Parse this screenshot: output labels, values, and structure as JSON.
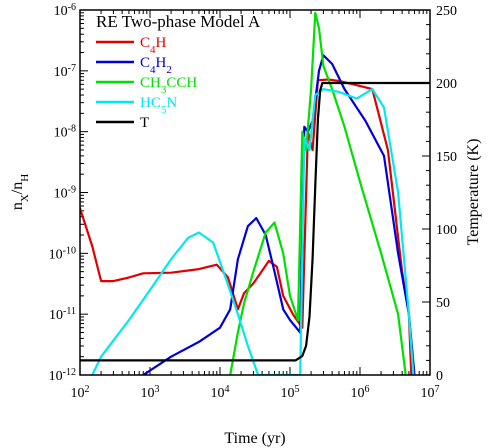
{
  "chart_data": {
    "type": "line",
    "title": "RE Two-phase Model A",
    "xlabel": "Time (yr)",
    "ylabel": "n_X/n_H",
    "ylabel_right": "Temperature (K)",
    "x_scale": "log",
    "y_scale": "log",
    "xlim": [
      100,
      10000000
    ],
    "ylim": [
      1e-12,
      1e-06
    ],
    "y2lim": [
      0,
      250
    ],
    "x_ticks": [
      {
        "v": 100,
        "base": "10",
        "exp": "2"
      },
      {
        "v": 1000,
        "base": "10",
        "exp": "3"
      },
      {
        "v": 10000,
        "base": "10",
        "exp": "4"
      },
      {
        "v": 100000,
        "base": "10",
        "exp": "5"
      },
      {
        "v": 1000000,
        "base": "10",
        "exp": "6"
      },
      {
        "v": 10000000,
        "base": "10",
        "exp": "7"
      }
    ],
    "y_ticks": [
      {
        "v": 1e-12,
        "base": "10",
        "exp": "-12"
      },
      {
        "v": 1e-11,
        "base": "10",
        "exp": "-11"
      },
      {
        "v": 1e-10,
        "base": "10",
        "exp": "-10"
      },
      {
        "v": 1e-09,
        "base": "10",
        "exp": "-9"
      },
      {
        "v": 1e-08,
        "base": "10",
        "exp": "-8"
      },
      {
        "v": 1e-07,
        "base": "10",
        "exp": "-7"
      },
      {
        "v": 1e-06,
        "base": "10",
        "exp": "-6"
      }
    ],
    "y2_ticks": [
      "0",
      "50",
      "100",
      "150",
      "200",
      "250"
    ],
    "legend_position": "top-left",
    "series": [
      {
        "name": "C4H",
        "label_parts": [
          {
            "t": "C"
          },
          {
            "t": "4",
            "sub": true
          },
          {
            "t": "H"
          }
        ],
        "color": "#e00000",
        "axis": "left",
        "points": [
          [
            100,
            5.5e-10
          ],
          [
            150,
            1.3e-10
          ],
          [
            200,
            3.5e-11
          ],
          [
            300,
            3.5e-11
          ],
          [
            500,
            4e-11
          ],
          [
            800,
            4.7e-11
          ],
          [
            2000,
            4.8e-11
          ],
          [
            5000,
            5.5e-11
          ],
          [
            9000,
            6.5e-11
          ],
          [
            13000,
            4e-11
          ],
          [
            18000,
            1.2e-11
          ],
          [
            22000,
            2.2e-11
          ],
          [
            30000,
            3.2e-11
          ],
          [
            50000,
            7.5e-11
          ],
          [
            65000,
            6e-11
          ],
          [
            80000,
            2e-11
          ],
          [
            110000,
            1e-11
          ],
          [
            150000,
            6e-12
          ],
          [
            180000,
            1e-08
          ],
          [
            210000,
            5e-09
          ],
          [
            250000,
            7e-08
          ],
          [
            350000,
            7.2e-08
          ],
          [
            500000,
            6.8e-08
          ],
          [
            800000,
            6e-08
          ],
          [
            1500000,
            5e-08
          ],
          [
            2500000,
            5e-09
          ],
          [
            4000000,
            5e-11
          ],
          [
            5000000,
            1e-11
          ],
          [
            5400000,
            1e-12
          ]
        ]
      },
      {
        "name": "C4H2",
        "label_parts": [
          {
            "t": "C"
          },
          {
            "t": "4",
            "sub": true
          },
          {
            "t": "H"
          },
          {
            "t": "2",
            "sub": true
          }
        ],
        "color": "#0000d8",
        "axis": "left",
        "points": [
          [
            800,
            1e-12
          ],
          [
            2000,
            2e-12
          ],
          [
            5000,
            3.5e-12
          ],
          [
            10000,
            6e-12
          ],
          [
            14000,
            1.2e-11
          ],
          [
            18000,
            8e-11
          ],
          [
            25000,
            2.8e-10
          ],
          [
            33000,
            3.8e-10
          ],
          [
            45000,
            2e-10
          ],
          [
            60000,
            5e-11
          ],
          [
            80000,
            1.2e-11
          ],
          [
            100000,
            8e-12
          ],
          [
            140000,
            5e-12
          ],
          [
            160000,
            1.2e-08
          ],
          [
            180000,
            1e-08
          ],
          [
            210000,
            1.5e-08
          ],
          [
            260000,
            1e-07
          ],
          [
            300000,
            1.8e-07
          ],
          [
            400000,
            1.3e-07
          ],
          [
            600000,
            5e-08
          ],
          [
            1200000,
            1.5e-08
          ],
          [
            2200000,
            4e-09
          ],
          [
            3500000,
            1e-10
          ],
          [
            5000000,
            1e-11
          ],
          [
            6000000,
            1e-12
          ]
        ]
      },
      {
        "name": "CH3CCH",
        "label_parts": [
          {
            "t": "CH"
          },
          {
            "t": "3",
            "sub": true
          },
          {
            "t": "CCH"
          }
        ],
        "color": "#00e000",
        "axis": "left",
        "points": [
          [
            14000,
            1e-12
          ],
          [
            18000,
            5e-12
          ],
          [
            22000,
            1.5e-11
          ],
          [
            30000,
            5e-11
          ],
          [
            45000,
            2.2e-10
          ],
          [
            60000,
            3.2e-10
          ],
          [
            80000,
            1e-10
          ],
          [
            100000,
            2e-11
          ],
          [
            130000,
            8e-12
          ],
          [
            150000,
            1e-08
          ],
          [
            170000,
            5e-09
          ],
          [
            200000,
            5e-08
          ],
          [
            230000,
            9e-07
          ],
          [
            260000,
            5e-07
          ],
          [
            300000,
            1.2e-07
          ],
          [
            400000,
            5e-08
          ],
          [
            600000,
            1.2e-08
          ],
          [
            1000000,
            1.5e-09
          ],
          [
            2000000,
            1e-10
          ],
          [
            3500000,
            1e-11
          ],
          [
            4500000,
            1e-12
          ]
        ]
      },
      {
        "name": "HC5N",
        "label_parts": [
          {
            "t": "HC"
          },
          {
            "t": "5",
            "sub": true
          },
          {
            "t": "N"
          }
        ],
        "color": "#00e8f0",
        "axis": "left",
        "points": [
          [
            150,
            1e-12
          ],
          [
            200,
            2e-12
          ],
          [
            500,
            8e-12
          ],
          [
            1000,
            2.5e-11
          ],
          [
            2000,
            8e-11
          ],
          [
            3500,
            1.8e-10
          ],
          [
            5000,
            2.2e-10
          ],
          [
            8000,
            1.5e-10
          ],
          [
            12000,
            4e-11
          ],
          [
            18000,
            1e-11
          ],
          [
            25000,
            3e-12
          ],
          [
            35000,
            1e-12
          ],
          [
            140000,
            1e-12
          ],
          [
            160000,
            8e-09
          ],
          [
            190000,
            5e-09
          ],
          [
            230000,
            4e-08
          ],
          [
            300000,
            5e-08
          ],
          [
            500000,
            4.5e-08
          ],
          [
            900000,
            3.5e-08
          ],
          [
            1500000,
            5e-08
          ],
          [
            2200000,
            2.5e-08
          ],
          [
            3500000,
            1e-09
          ],
          [
            5000000,
            1e-11
          ],
          [
            5800000,
            1e-12
          ]
        ]
      },
      {
        "name": "T",
        "label_parts": [
          {
            "t": "T"
          }
        ],
        "color": "#000000",
        "axis": "right",
        "points": [
          [
            100,
            10
          ],
          [
            70000,
            10
          ],
          [
            120000,
            10
          ],
          [
            150000,
            13
          ],
          [
            170000,
            20
          ],
          [
            190000,
            40
          ],
          [
            210000,
            80
          ],
          [
            230000,
            130
          ],
          [
            250000,
            175
          ],
          [
            270000,
            195
          ],
          [
            290000,
            200
          ],
          [
            10000000,
            200
          ]
        ]
      }
    ]
  }
}
